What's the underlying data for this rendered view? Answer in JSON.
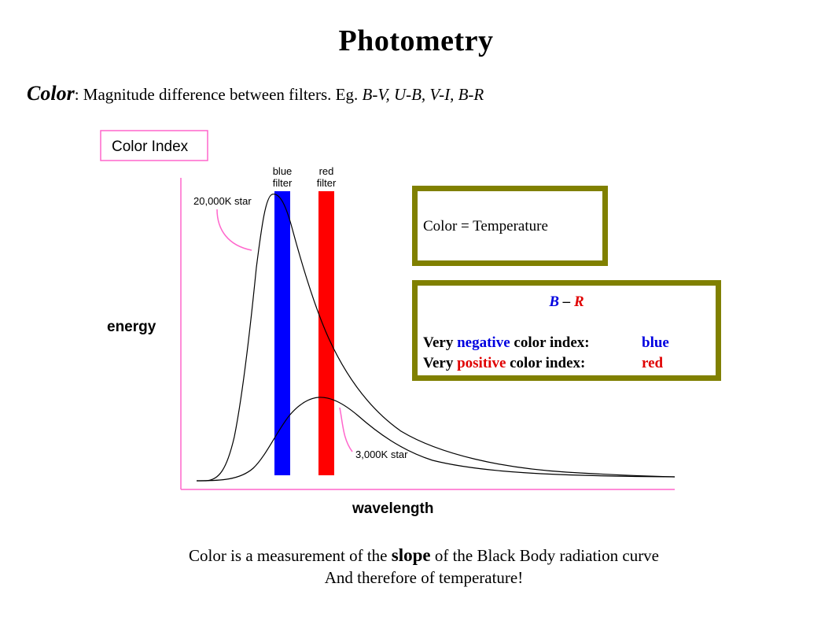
{
  "title": "Photometry",
  "subtitle": {
    "lead": "Color",
    "text": ": Magnitude difference between filters. Eg. ",
    "examples": "B-V, U-B, V-I, B-R"
  },
  "figure": {
    "heading": "Color Index",
    "filters": {
      "blue": [
        "blue",
        "filter"
      ],
      "red": [
        "red",
        "filter"
      ]
    },
    "labels": {
      "hot_star": "20,000K star",
      "cool_star": "3,000K star",
      "y_axis": "energy",
      "x_axis": "wavelength"
    },
    "colors": {
      "axes": "#ff66cc",
      "blue_filter": "#0000ff",
      "red_filter": "#ff0000",
      "curve": "#000000",
      "box_border": "#808000"
    }
  },
  "temperature_box": {
    "text": "Color = Temperature"
  },
  "index_box": {
    "head_b": "B",
    "head_sep": " – ",
    "head_r": "R",
    "row1": {
      "pre": "Very ",
      "word": "negative",
      "post": " color index:",
      "value": "blue"
    },
    "row2": {
      "pre": "Very ",
      "word": "positive",
      "post": " color index:",
      "value": "red"
    }
  },
  "caption": {
    "line1_pre": "Color is a measurement of the ",
    "line1_slope": "slope",
    "line1_post": " of the Black Body radiation curve",
    "line2": "And therefore of temperature!"
  }
}
